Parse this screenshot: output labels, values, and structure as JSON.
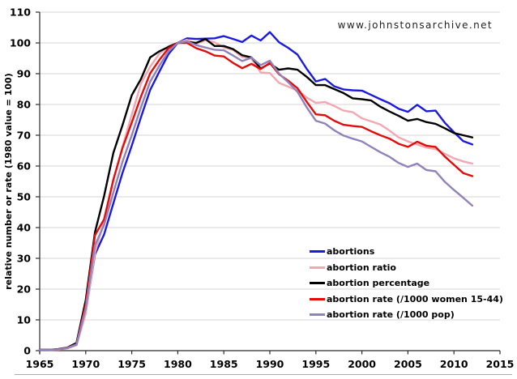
{
  "watermark": "www.johnstonsarchive.net",
  "chart_data": {
    "type": "line",
    "title": "",
    "xlabel": "",
    "ylabel": "relative number or rate (1980 value = 100)",
    "xlim": [
      1965,
      2015
    ],
    "ylim": [
      0,
      110
    ],
    "x_ticks": [
      1965,
      1970,
      1975,
      1980,
      1985,
      1990,
      1995,
      2000,
      2005,
      2010,
      2015
    ],
    "y_ticks": [
      0,
      10,
      20,
      30,
      40,
      50,
      60,
      70,
      80,
      90,
      100,
      110
    ],
    "grid": "horizontal",
    "legend_position": "inside-lower-right",
    "x": [
      1965,
      1966,
      1967,
      1968,
      1969,
      1970,
      1971,
      1972,
      1973,
      1974,
      1975,
      1976,
      1977,
      1978,
      1979,
      1980,
      1981,
      1982,
      1983,
      1984,
      1985,
      1986,
      1987,
      1988,
      1989,
      1990,
      1991,
      1992,
      1993,
      1994,
      1995,
      1996,
      1997,
      1998,
      1999,
      2000,
      2001,
      2002,
      2003,
      2004,
      2005,
      2006,
      2007,
      2008,
      2009,
      2010,
      2011,
      2012
    ],
    "series": [
      {
        "name": "abortions",
        "color": "#1a1ae0",
        "values": [
          0.3,
          0.3,
          0.4,
          0.8,
          1.9,
          12.5,
          31.3,
          37.8,
          47.9,
          57.8,
          66.6,
          75.9,
          84.7,
          90.7,
          96.4,
          100,
          101.5,
          101.3,
          101.4,
          101.5,
          102.2,
          101.3,
          100.3,
          102.4,
          100.8,
          103.5,
          100.2,
          98.4,
          96.2,
          91.6,
          87.5,
          88.3,
          85.9,
          84.9,
          84.6,
          84.5,
          83.1,
          81.7,
          80.4,
          78.6,
          77.6,
          79.9,
          77.8,
          78.0,
          74.1,
          71.0,
          68.1,
          67.0
        ]
      },
      {
        "name": "abortion ratio",
        "color": "#f4a7b0",
        "values": [
          0.2,
          0.2,
          0.3,
          0.7,
          1.8,
          12.1,
          31.9,
          42.0,
          55.4,
          66.3,
          76.7,
          86.8,
          92.3,
          96.5,
          99.0,
          100,
          101.0,
          99.7,
          100.9,
          100.2,
          98.5,
          97.7,
          95.4,
          94.9,
          90.4,
          90.2,
          87.0,
          85.8,
          84.5,
          82.3,
          80.5,
          80.8,
          79.5,
          78.0,
          77.5,
          75.5,
          74.5,
          73.5,
          71.5,
          69.3,
          68.0,
          67.0,
          66.0,
          65.5,
          64.0,
          62.5,
          61.5,
          60.8
        ]
      },
      {
        "name": "abortion percentage",
        "color": "#000000",
        "values": [
          0.3,
          0.3,
          0.5,
          1.0,
          2.5,
          16.4,
          38.5,
          50.3,
          64.3,
          73.3,
          83.0,
          88.3,
          95.3,
          97.3,
          98.7,
          100,
          100.3,
          100.0,
          101.3,
          99.0,
          99.0,
          98.0,
          96.0,
          95.3,
          91.7,
          93.3,
          91.3,
          91.7,
          91.3,
          89.0,
          86.3,
          86.3,
          85.0,
          83.7,
          82.0,
          81.7,
          81.3,
          79.3,
          77.7,
          76.3,
          74.7,
          75.3,
          74.3,
          73.7,
          72.3,
          70.7,
          70.0,
          69.3
        ]
      },
      {
        "name": "abortion rate (/1000 women 15-44)",
        "color": "#e60b0b",
        "values": [
          0.3,
          0.3,
          0.4,
          0.9,
          2.0,
          15.0,
          37.5,
          42.7,
          55.6,
          65.9,
          74.1,
          82.6,
          90.1,
          94.5,
          98.3,
          100,
          100.0,
          98.3,
          97.3,
          95.9,
          95.6,
          93.5,
          91.8,
          93.2,
          91.5,
          93.5,
          89.8,
          87.7,
          85.3,
          80.9,
          76.8,
          76.5,
          74.7,
          73.4,
          73.0,
          72.7,
          71.3,
          70.0,
          68.9,
          67.2,
          66.2,
          67.9,
          66.6,
          66.2,
          63.1,
          60.4,
          57.7,
          56.7
        ]
      },
      {
        "name": "abortion rate (/1000 pop)",
        "color": "#9082ba",
        "values": [
          0.3,
          0.3,
          0.4,
          0.9,
          2.0,
          13.7,
          34.2,
          40.9,
          51.4,
          61.4,
          70.0,
          79.1,
          87.4,
          92.6,
          97.3,
          100,
          100.5,
          99.3,
          98.5,
          97.8,
          97.6,
          95.9,
          94.1,
          95.2,
          92.8,
          94.2,
          90.0,
          87.2,
          84.1,
          79.1,
          74.7,
          73.8,
          71.6,
          69.9,
          68.9,
          68.0,
          66.2,
          64.5,
          63.0,
          61.0,
          59.7,
          60.8,
          58.7,
          58.3,
          54.9,
          52.2,
          49.7,
          47.1
        ]
      }
    ],
    "colors": {
      "gridline": "#d4d4d4",
      "axis": "#2b2b2b",
      "page_divider": "#adadad"
    }
  }
}
